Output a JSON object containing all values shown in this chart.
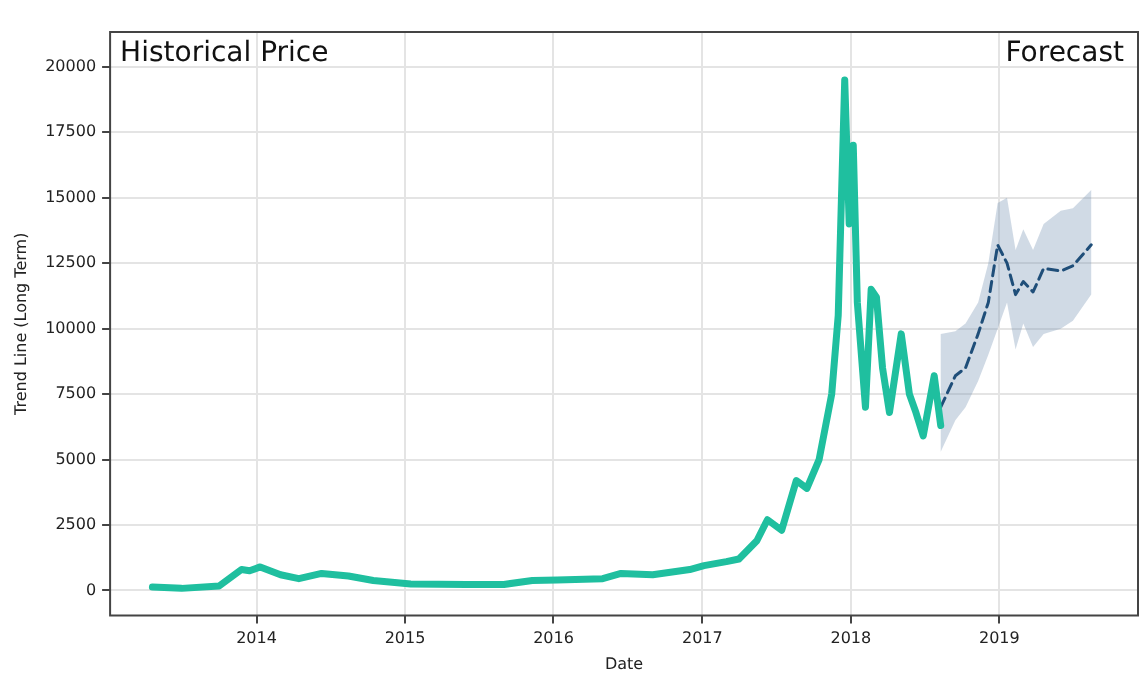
{
  "chart_data": {
    "type": "line",
    "xlabel": "Date",
    "ylabel": "Trend Line (Long Term)",
    "annotations": [
      "Historical Price",
      "Forecast"
    ],
    "xlim": [
      "2013-01-06",
      "2019-12-08"
    ],
    "xticks": [
      "2014",
      "2015",
      "2016",
      "2017",
      "2018",
      "2019"
    ],
    "ylim": [
      -960,
      21330
    ],
    "yticks": [
      0,
      2500,
      5000,
      7500,
      10000,
      12500,
      15000,
      17500,
      20000
    ],
    "grid": true,
    "legend": false,
    "series": [
      {
        "color": "#1fbf9f",
        "line_style": "solid",
        "x": [
          "2013-04-20",
          "2013-07-01",
          "2013-10-01",
          "2013-11-25",
          "2013-12-15",
          "2014-01-10",
          "2014-03-01",
          "2014-04-15",
          "2014-06-10",
          "2014-08-15",
          "2014-10-15",
          "2015-01-15",
          "2015-06-01",
          "2015-09-01",
          "2015-11-10",
          "2016-01-10",
          "2016-05-01",
          "2016-06-15",
          "2016-09-01",
          "2016-12-01",
          "2017-01-05",
          "2017-03-01",
          "2017-04-01",
          "2017-05-15",
          "2017-06-10",
          "2017-07-15",
          "2017-08-20",
          "2017-09-15",
          "2017-10-15",
          "2017-11-15",
          "2017-12-01",
          "2017-12-17",
          "2017-12-28",
          "2018-01-07",
          "2018-01-17",
          "2018-02-06",
          "2018-02-20",
          "2018-03-05",
          "2018-03-20",
          "2018-04-06",
          "2018-05-05",
          "2018-05-25",
          "2018-06-10",
          "2018-06-28",
          "2018-07-25",
          "2018-08-10"
        ],
        "values": [
          130,
          80,
          170,
          800,
          750,
          900,
          600,
          450,
          650,
          550,
          380,
          250,
          230,
          230,
          380,
          400,
          450,
          650,
          600,
          800,
          950,
          1100,
          1200,
          1900,
          2700,
          2300,
          4200,
          3900,
          5000,
          7500,
          10500,
          19500,
          14000,
          17000,
          11000,
          7000,
          11500,
          11200,
          8500,
          6800,
          9800,
          7500,
          6800,
          5900,
          8200,
          6300
        ]
      },
      {
        "color": "#1f4e79",
        "line_style": "dashed",
        "x": [
          "2018-08-10",
          "2018-09-15",
          "2018-10-10",
          "2018-11-10",
          "2018-12-05",
          "2018-12-28",
          "2019-01-20",
          "2019-02-10",
          "2019-03-01",
          "2019-03-25",
          "2019-04-20",
          "2019-06-01",
          "2019-07-01",
          "2019-08-15"
        ],
        "values": [
          7000,
          8200,
          8500,
          9800,
          11000,
          13200,
          12500,
          11300,
          11800,
          11400,
          12300,
          12200,
          12400,
          13200
        ],
        "lower": [
          5300,
          6500,
          7000,
          8000,
          9000,
          10000,
          11000,
          9200,
          10200,
          9300,
          9800,
          10000,
          10300,
          11300
        ],
        "upper": [
          9800,
          9900,
          10200,
          11000,
          12500,
          14800,
          15000,
          13000,
          13800,
          13000,
          14000,
          14500,
          14600,
          15300
        ]
      }
    ]
  }
}
